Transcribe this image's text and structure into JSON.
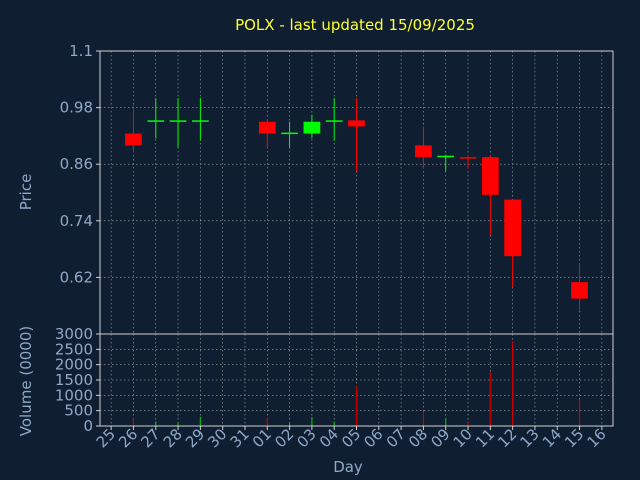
{
  "chart_data": {
    "type": "candlestick",
    "title": "POLX - last updated 15/09/2025",
    "xlabel": "Day",
    "price_panel": {
      "ylabel": "Price",
      "ylim": [
        0.5,
        1.1
      ],
      "yticks": [
        "1.1",
        "0.98",
        "0.86",
        "0.74",
        "0.62"
      ],
      "ytick_values": [
        1.1,
        0.98,
        0.86,
        0.74,
        0.62
      ],
      "grid": true
    },
    "volume_panel": {
      "ylabel": "Volume (0000)",
      "ylim": [
        0,
        3000
      ],
      "yticks": [
        "3000",
        "2500",
        "2000",
        "1500",
        "1000",
        "500",
        "0"
      ],
      "ytick_values": [
        3000,
        2500,
        2000,
        1500,
        1000,
        500,
        0
      ],
      "grid": true
    },
    "x_ticks": [
      "25",
      "26",
      "27",
      "28",
      "29",
      "30",
      "31",
      "01",
      "02",
      "03",
      "04",
      "05",
      "06",
      "07",
      "08",
      "09",
      "10",
      "11",
      "12",
      "13",
      "14",
      "15",
      "16"
    ],
    "candles": [
      {
        "day": "26",
        "open": 0.925,
        "high": 0.985,
        "low": 0.885,
        "close": 0.9,
        "volume": 280
      },
      {
        "day": "27",
        "open": 0.95,
        "high": 1.0,
        "low": 0.915,
        "close": 0.953,
        "volume": 150
      },
      {
        "day": "28",
        "open": 0.95,
        "high": 1.0,
        "low": 0.895,
        "close": 0.953,
        "volume": 120
      },
      {
        "day": "29",
        "open": 0.95,
        "high": 1.0,
        "low": 0.91,
        "close": 0.953,
        "volume": 300
      },
      {
        "day": "01",
        "open": 0.95,
        "high": 0.955,
        "low": 0.895,
        "close": 0.925,
        "volume": 270
      },
      {
        "day": "02",
        "open": 0.925,
        "high": 0.95,
        "low": 0.895,
        "close": 0.927,
        "volume": 100
      },
      {
        "day": "03",
        "open": 0.925,
        "high": 0.965,
        "low": 0.915,
        "close": 0.95,
        "volume": 290
      },
      {
        "day": "04",
        "open": 0.95,
        "high": 1.0,
        "low": 0.91,
        "close": 0.953,
        "volume": 150
      },
      {
        "day": "05",
        "open": 0.953,
        "high": 1.0,
        "low": 0.845,
        "close": 0.94,
        "volume": 1300
      },
      {
        "day": "08",
        "open": 0.9,
        "high": 0.94,
        "low": 0.85,
        "close": 0.875,
        "volume": 480
      },
      {
        "day": "09",
        "open": 0.875,
        "high": 0.88,
        "low": 0.845,
        "close": 0.878,
        "volume": 250
      },
      {
        "day": "10",
        "open": 0.875,
        "high": 0.88,
        "low": 0.85,
        "close": 0.873,
        "volume": 120
      },
      {
        "day": "11",
        "open": 0.875,
        "high": 0.88,
        "low": 0.71,
        "close": 0.795,
        "volume": 1750
      },
      {
        "day": "12",
        "open": 0.785,
        "high": 0.785,
        "low": 0.6,
        "close": 0.665,
        "volume": 2750
      },
      {
        "day": "15",
        "open": 0.61,
        "high": 0.65,
        "low": 0.55,
        "close": 0.575,
        "volume": 870
      }
    ],
    "colors": {
      "background": "#0f1e30",
      "axis": "#d0d0d0",
      "grid": "#d0d0d0",
      "tick_text": "#8fa8c8",
      "title": "#ffff33",
      "up": "#00ff00",
      "down": "#ff0000",
      "volume_down": "#cc0000",
      "volume_up": "#00bb00"
    }
  }
}
